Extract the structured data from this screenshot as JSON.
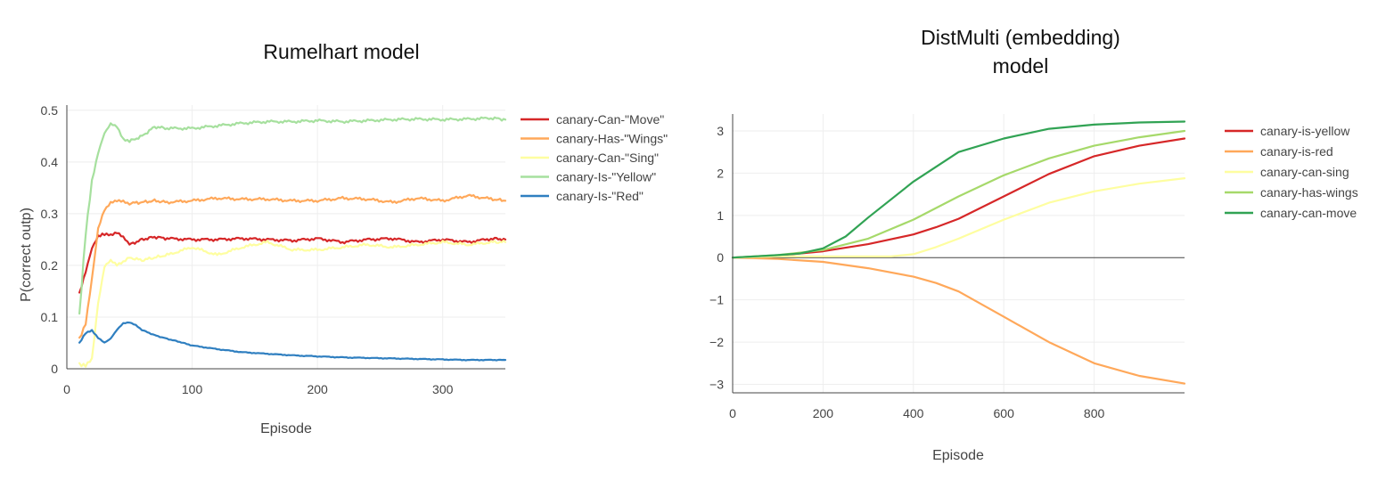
{
  "chart_data": [
    {
      "type": "line",
      "title": "Rumelhart model",
      "xlabel": "Episode",
      "ylabel": "P(correct outp)",
      "xlim": [
        0,
        350
      ],
      "ylim": [
        0,
        0.51
      ],
      "xticks": [
        0,
        100,
        200,
        300
      ],
      "yticks": [
        0,
        0.1,
        0.2,
        0.3,
        0.4,
        0.5
      ],
      "grid": true,
      "legend": "right",
      "series": [
        {
          "name": "canary-Can-\"Move\"",
          "color": "#d62728",
          "x": [
            10,
            15,
            20,
            25,
            30,
            35,
            40,
            45,
            50,
            60,
            70,
            80,
            100,
            120,
            140,
            160,
            180,
            200,
            220,
            240,
            260,
            280,
            300,
            320,
            340,
            350
          ],
          "y": [
            0.145,
            0.185,
            0.23,
            0.255,
            0.262,
            0.26,
            0.265,
            0.255,
            0.24,
            0.25,
            0.255,
            0.252,
            0.25,
            0.25,
            0.252,
            0.25,
            0.248,
            0.252,
            0.245,
            0.25,
            0.252,
            0.245,
            0.25,
            0.245,
            0.252,
            0.25
          ]
        },
        {
          "name": "canary-Has-\"Wings\"",
          "color": "#ffa85a",
          "x": [
            10,
            15,
            20,
            25,
            30,
            35,
            40,
            45,
            50,
            60,
            70,
            80,
            100,
            120,
            140,
            160,
            180,
            200,
            220,
            240,
            260,
            280,
            300,
            320,
            340,
            350
          ],
          "y": [
            0.06,
            0.09,
            0.175,
            0.27,
            0.305,
            0.32,
            0.325,
            0.325,
            0.32,
            0.322,
            0.325,
            0.322,
            0.325,
            0.33,
            0.328,
            0.328,
            0.325,
            0.325,
            0.33,
            0.328,
            0.322,
            0.33,
            0.325,
            0.335,
            0.328,
            0.325
          ]
        },
        {
          "name": "canary-Can-\"Sing\"",
          "color": "#fefea0",
          "x": [
            10,
            15,
            20,
            25,
            30,
            35,
            40,
            45,
            50,
            60,
            70,
            80,
            100,
            120,
            140,
            160,
            180,
            200,
            220,
            240,
            260,
            280,
            300,
            320,
            340,
            350
          ],
          "y": [
            0.005,
            0.005,
            0.02,
            0.13,
            0.2,
            0.21,
            0.2,
            0.205,
            0.215,
            0.21,
            0.215,
            0.22,
            0.235,
            0.22,
            0.235,
            0.245,
            0.23,
            0.23,
            0.235,
            0.24,
            0.235,
            0.24,
            0.245,
            0.24,
            0.245,
            0.245
          ]
        },
        {
          "name": "canary-Is-\"Yellow\"",
          "color": "#a6e09e",
          "x": [
            10,
            15,
            20,
            25,
            30,
            35,
            40,
            45,
            50,
            60,
            70,
            80,
            100,
            120,
            140,
            160,
            180,
            200,
            220,
            240,
            260,
            280,
            300,
            320,
            340,
            350
          ],
          "y": [
            0.105,
            0.26,
            0.36,
            0.415,
            0.455,
            0.475,
            0.47,
            0.445,
            0.44,
            0.45,
            0.468,
            0.465,
            0.465,
            0.47,
            0.475,
            0.478,
            0.478,
            0.48,
            0.478,
            0.48,
            0.482,
            0.483,
            0.482,
            0.483,
            0.485,
            0.482
          ]
        },
        {
          "name": "canary-Is-\"Red\"",
          "color": "#2f7fc0",
          "x": [
            10,
            15,
            20,
            25,
            30,
            35,
            40,
            45,
            50,
            55,
            60,
            70,
            80,
            90,
            100,
            120,
            140,
            160,
            180,
            200,
            220,
            240,
            260,
            280,
            300,
            320,
            340,
            350
          ],
          "y": [
            0.05,
            0.07,
            0.075,
            0.06,
            0.05,
            0.058,
            0.075,
            0.088,
            0.09,
            0.085,
            0.075,
            0.065,
            0.058,
            0.052,
            0.045,
            0.038,
            0.032,
            0.029,
            0.026,
            0.024,
            0.022,
            0.021,
            0.02,
            0.019,
            0.018,
            0.017,
            0.017,
            0.017
          ]
        }
      ]
    },
    {
      "type": "line",
      "title": "DistMulti (embedding) model",
      "title_lines": [
        "DistMulti (embedding)",
        "model"
      ],
      "xlabel": "Episode",
      "ylabel": "",
      "xlim": [
        0,
        1000
      ],
      "ylim": [
        -3.2,
        3.4
      ],
      "xticks": [
        0,
        200,
        400,
        600,
        800
      ],
      "yticks": [
        -3,
        -2,
        -1,
        0,
        1,
        2,
        3
      ],
      "grid": true,
      "legend": "right",
      "series": [
        {
          "name": "canary-is-yellow",
          "color": "#d62728",
          "x": [
            0,
            100,
            200,
            300,
            400,
            450,
            500,
            600,
            700,
            800,
            900,
            1000
          ],
          "y": [
            0,
            0.05,
            0.15,
            0.32,
            0.55,
            0.72,
            0.92,
            1.45,
            1.98,
            2.4,
            2.65,
            2.82
          ]
        },
        {
          "name": "canary-is-red",
          "color": "#ffa85a",
          "x": [
            0,
            100,
            200,
            300,
            400,
            450,
            500,
            600,
            700,
            800,
            900,
            1000
          ],
          "y": [
            0,
            -0.03,
            -0.1,
            -0.25,
            -0.45,
            -0.6,
            -0.8,
            -1.4,
            -2.0,
            -2.5,
            -2.8,
            -2.98
          ]
        },
        {
          "name": "canary-can-sing",
          "color": "#fefea0",
          "x": [
            0,
            100,
            200,
            300,
            350,
            400,
            450,
            500,
            600,
            700,
            800,
            900,
            1000
          ],
          "y": [
            0,
            0.03,
            0.03,
            0.03,
            0.03,
            0.08,
            0.25,
            0.45,
            0.9,
            1.3,
            1.57,
            1.75,
            1.88
          ]
        },
        {
          "name": "canary-has-wings",
          "color": "#a6d96a",
          "x": [
            0,
            100,
            200,
            300,
            400,
            500,
            600,
            700,
            800,
            900,
            1000
          ],
          "y": [
            0,
            0.06,
            0.18,
            0.45,
            0.9,
            1.45,
            1.95,
            2.35,
            2.65,
            2.85,
            3.0
          ]
        },
        {
          "name": "canary-can-move",
          "color": "#31a354",
          "x": [
            0,
            100,
            150,
            200,
            250,
            300,
            400,
            500,
            600,
            700,
            800,
            900,
            1000
          ],
          "y": [
            0,
            0.06,
            0.1,
            0.22,
            0.5,
            0.95,
            1.8,
            2.5,
            2.82,
            3.05,
            3.15,
            3.2,
            3.22
          ]
        }
      ]
    }
  ]
}
